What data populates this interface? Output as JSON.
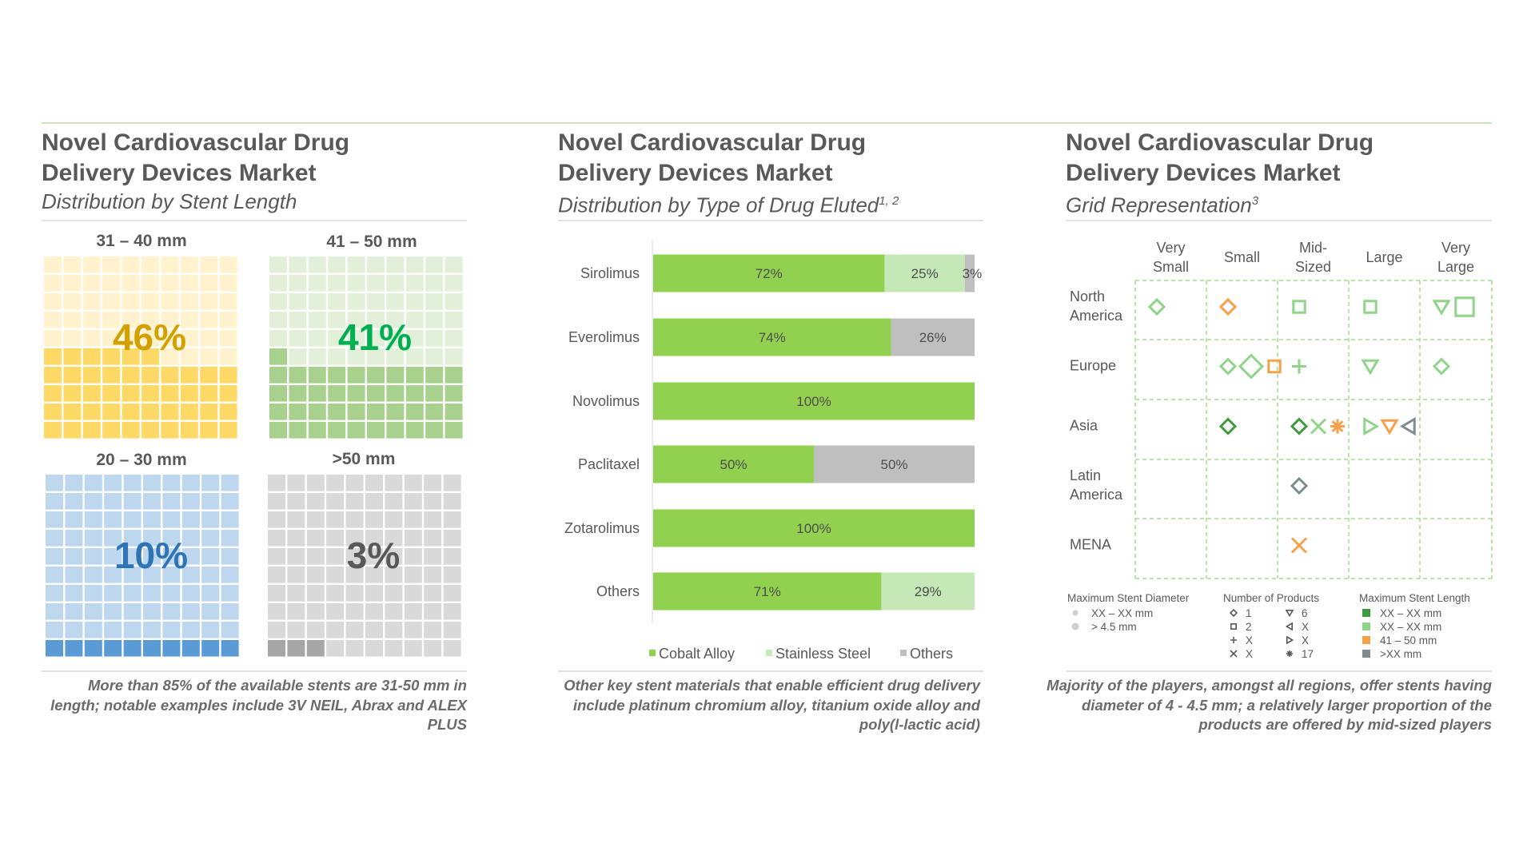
{
  "panels": [
    {
      "title_line1": "Novel Cardiovascular Drug",
      "title_line2": "Delivery Devices Market",
      "subtitle": "Distribution by Stent Length",
      "caption": "More than 85% of the available stents are 31-50 mm in length; notable examples include 3V NEIL, Abrax and ALEX PLUS"
    },
    {
      "title_line1": "Novel Cardiovascular Drug",
      "title_line2": "Delivery Devices Market",
      "subtitle": "Distribution by Type of Drug Eluted",
      "subtitle_sup": "1, 2",
      "caption": "Other key stent materials that enable efficient drug delivery include platinum chromium alloy, titanium oxide alloy and poly(l-lactic acid)"
    },
    {
      "title_line1": "Novel Cardiovascular Drug",
      "title_line2": "Delivery Devices Market",
      "subtitle": "Grid Representation",
      "subtitle_sup": "3",
      "caption": "Majority of the players, amongst all regions, offer stents having diameter of 4 - 4.5 mm; a relatively larger proportion of the products are offered by mid-sized players"
    }
  ],
  "chart_data": [
    {
      "type": "waffle",
      "grid": "10x10",
      "cells": [
        {
          "label": "31 – 40 mm",
          "value": 46,
          "value_label": "46%",
          "color": "#ffd966",
          "bg_color": "#fff2cc",
          "text_color": "#d4a000"
        },
        {
          "label": "41 – 50 mm",
          "value": 41,
          "value_label": "41%",
          "color": "#a9d18e",
          "bg_color": "#e2f0d9",
          "text_color": "#00b050"
        },
        {
          "label": "20 – 30 mm",
          "value": 10,
          "value_label": "10%",
          "color": "#5b9bd5",
          "bg_color": "#bdd7ee",
          "text_color": "#2e75b6"
        },
        {
          "label": ">50 mm",
          "value": 3,
          "value_label": "3%",
          "color": "#a6a6a6",
          "bg_color": "#d9d9d9",
          "text_color": "#595959"
        }
      ]
    },
    {
      "type": "bar",
      "orientation": "horizontal",
      "stacked": true,
      "xlim": [
        0,
        100
      ],
      "categories": [
        "Sirolimus",
        "Everolimus",
        "Novolimus",
        "Paclitaxel",
        "Zotarolimus",
        "Others"
      ],
      "series": [
        {
          "name": "Cobalt Alloy",
          "color": "#92d050",
          "values": [
            72,
            74,
            100,
            50,
            100,
            71
          ]
        },
        {
          "name": "Stainless Steel",
          "color": "#c5e8b7",
          "values": [
            25,
            0,
            0,
            0,
            0,
            29
          ]
        },
        {
          "name": "Others",
          "color": "#bfbfbf",
          "values": [
            3,
            26,
            0,
            50,
            0,
            0
          ]
        }
      ],
      "legend": "bottom"
    },
    {
      "type": "grid",
      "columns": [
        "Very Small",
        "Small",
        "Mid-Sized",
        "Large",
        "Very Large"
      ],
      "rows": [
        "North America",
        "Europe",
        "Asia",
        "Latin America",
        "MENA"
      ],
      "cells": [
        [
          [
            {
              "shape": "diamond",
              "color": "#8fd48a",
              "size": "small"
            }
          ],
          [
            {
              "shape": "diamond",
              "color": "#f4a14a",
              "size": "small"
            }
          ],
          [
            {
              "shape": "square",
              "color": "#8fd48a",
              "size": "small"
            }
          ],
          [
            {
              "shape": "square",
              "color": "#8fd48a",
              "size": "small"
            }
          ],
          [
            {
              "shape": "triangle-down",
              "color": "#8fd48a",
              "size": "small"
            },
            {
              "shape": "square",
              "color": "#8fd48a",
              "size": "large"
            }
          ]
        ],
        [
          [],
          [
            {
              "shape": "diamond",
              "color": "#8fd48a",
              "size": "small"
            },
            {
              "shape": "diamond",
              "color": "#8fd48a",
              "size": "large"
            },
            {
              "shape": "square",
              "color": "#f4a14a",
              "size": "small"
            }
          ],
          [
            {
              "shape": "plus",
              "color": "#8fd48a",
              "size": "small"
            }
          ],
          [
            {
              "shape": "triangle-down",
              "color": "#8fd48a",
              "size": "small"
            }
          ],
          [
            {
              "shape": "diamond",
              "color": "#8fd48a",
              "size": "small"
            }
          ]
        ],
        [
          [],
          [
            {
              "shape": "diamond",
              "color": "#3d9b3d",
              "size": "small"
            }
          ],
          [
            {
              "shape": "diamond",
              "color": "#3d9b3d",
              "size": "small"
            },
            {
              "shape": "x",
              "color": "#8fd48a",
              "size": "small"
            },
            {
              "shape": "asterisk",
              "color": "#f4a14a",
              "size": "small"
            }
          ],
          [
            {
              "shape": "triangle-right",
              "color": "#8fd48a",
              "size": "small"
            },
            {
              "shape": "triangle-down",
              "color": "#f4a14a",
              "size": "small"
            },
            {
              "shape": "triangle-left",
              "color": "#7f8c8d",
              "size": "small"
            }
          ],
          []
        ],
        [
          [],
          [],
          [
            {
              "shape": "diamond",
              "color": "#7f8c8d",
              "size": "small"
            }
          ],
          [],
          []
        ],
        [
          [],
          [],
          [
            {
              "shape": "x",
              "color": "#f4a14a",
              "size": "small"
            }
          ],
          [],
          []
        ]
      ],
      "legend": {
        "diameter_title": "Maximum Stent Diameter",
        "diameter_items": [
          {
            "label": "XX – XX mm",
            "size": "small"
          },
          {
            "label": "> 4.5 mm",
            "size": "large"
          }
        ],
        "products_title": "Number of Products",
        "products_items": [
          {
            "shape": "diamond",
            "label": "1"
          },
          {
            "shape": "square",
            "label": "2"
          },
          {
            "shape": "plus",
            "label": "X"
          },
          {
            "shape": "x",
            "label": "X"
          },
          {
            "shape": "triangle-down",
            "label": "6"
          },
          {
            "shape": "triangle-left",
            "label": "X"
          },
          {
            "shape": "triangle-right",
            "label": "X"
          },
          {
            "shape": "asterisk",
            "label": "17"
          }
        ],
        "length_title": "Maximum Stent Length",
        "length_items": [
          {
            "color": "#3d9b3d",
            "label": "XX – XX mm"
          },
          {
            "color": "#8fd48a",
            "label": "XX – XX mm"
          },
          {
            "color": "#f4a14a",
            "label": "41 – 50 mm"
          },
          {
            "color": "#7f8c8d",
            "label": ">XX mm"
          }
        ]
      }
    }
  ]
}
